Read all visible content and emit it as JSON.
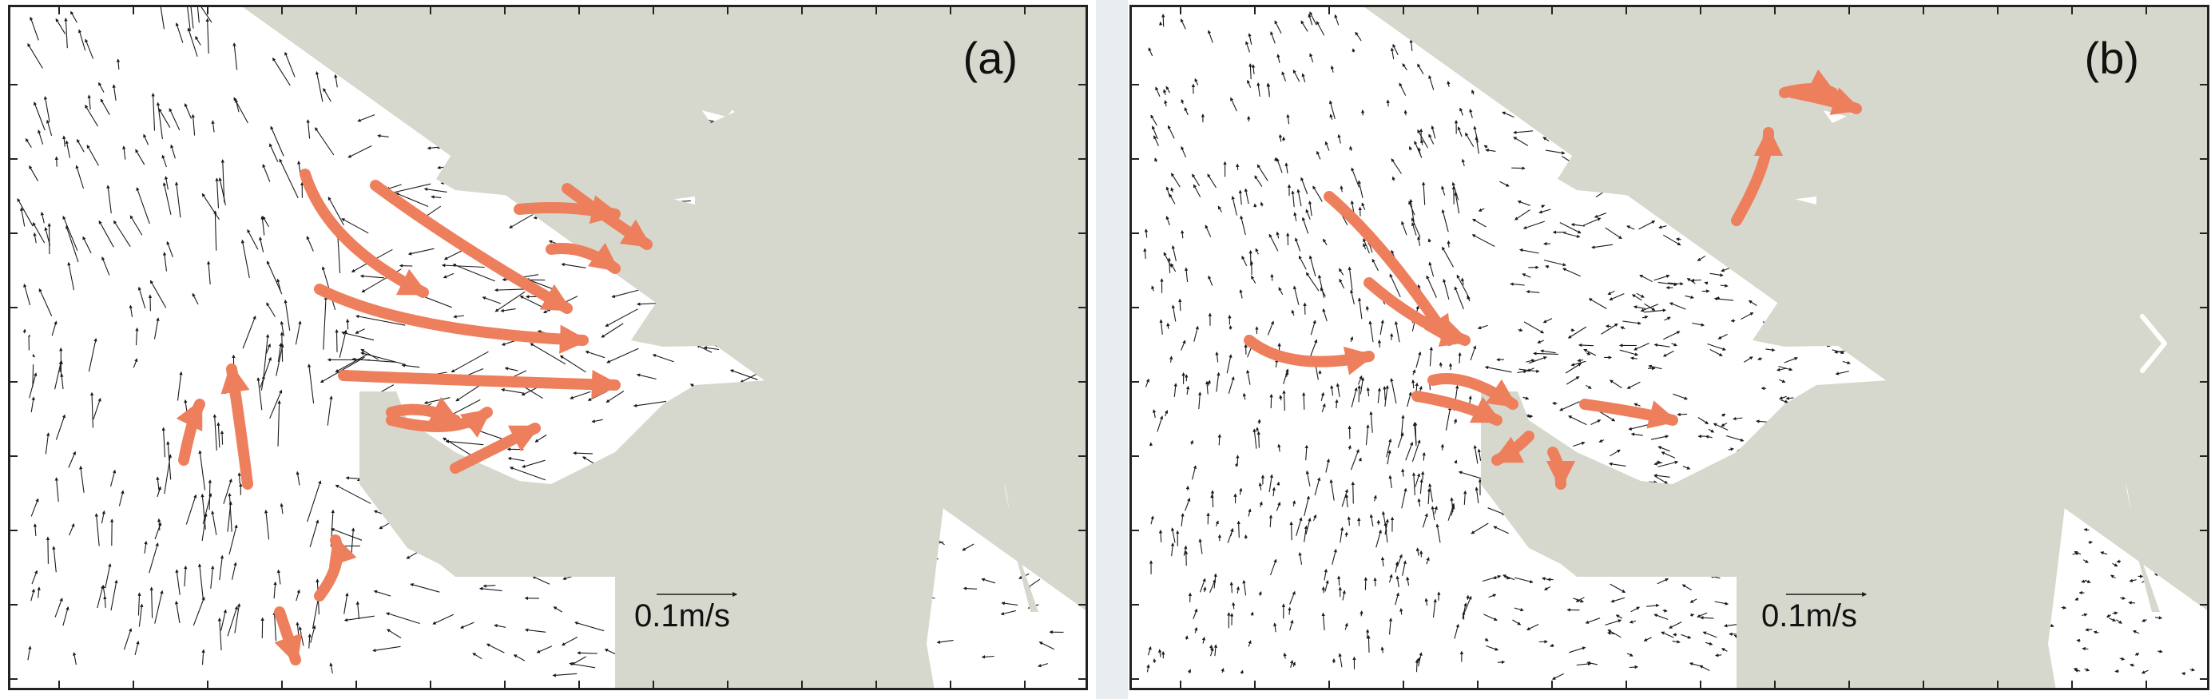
{
  "panels": [
    {
      "id": "a",
      "label": "(a)",
      "scale_label": "0.1m/s"
    },
    {
      "id": "b",
      "label": "(b)",
      "scale_label": "0.1m/s"
    }
  ],
  "colors": {
    "land": "#d7d8cd",
    "water": "#ffffff",
    "frame": "#222222",
    "vector": "#1a1a1a",
    "flow_arrow": "#ee7f5c",
    "divider": "#e9edf0",
    "nav_chevron": "#ffffff"
  },
  "nav": {
    "prev_icon": "chevron-left-icon",
    "next_icon": "chevron-right-icon"
  }
}
